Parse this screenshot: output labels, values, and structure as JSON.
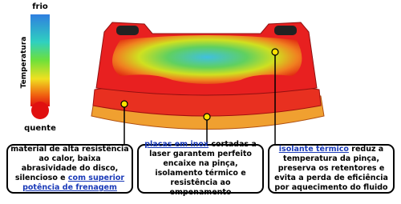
{
  "thermometer": {
    "top_label": "frio",
    "axis_label": "Temperatura",
    "bottom_label": "quente"
  },
  "callouts": [
    {
      "segments": [
        {
          "text": "material de alta resistência ao calor, baixa abrasividade do disco, silencioso e ",
          "link": false
        },
        {
          "text": "com superior potência de frenagem",
          "link": true
        }
      ]
    },
    {
      "segments": [
        {
          "text": "placas em inox",
          "link": true
        },
        {
          "text": " cortadas a laser garantem perfeito encaixe na pinça, isolamento térmico e resistência ao empenamento",
          "link": false
        }
      ]
    },
    {
      "segments": [
        {
          "text": "isolante térmico",
          "link": true
        },
        {
          "text": " reduz a temperatura da pinça, preserva os retentores e evita a perda de eficiência por aquecimento do fluido",
          "link": false
        }
      ]
    }
  ]
}
